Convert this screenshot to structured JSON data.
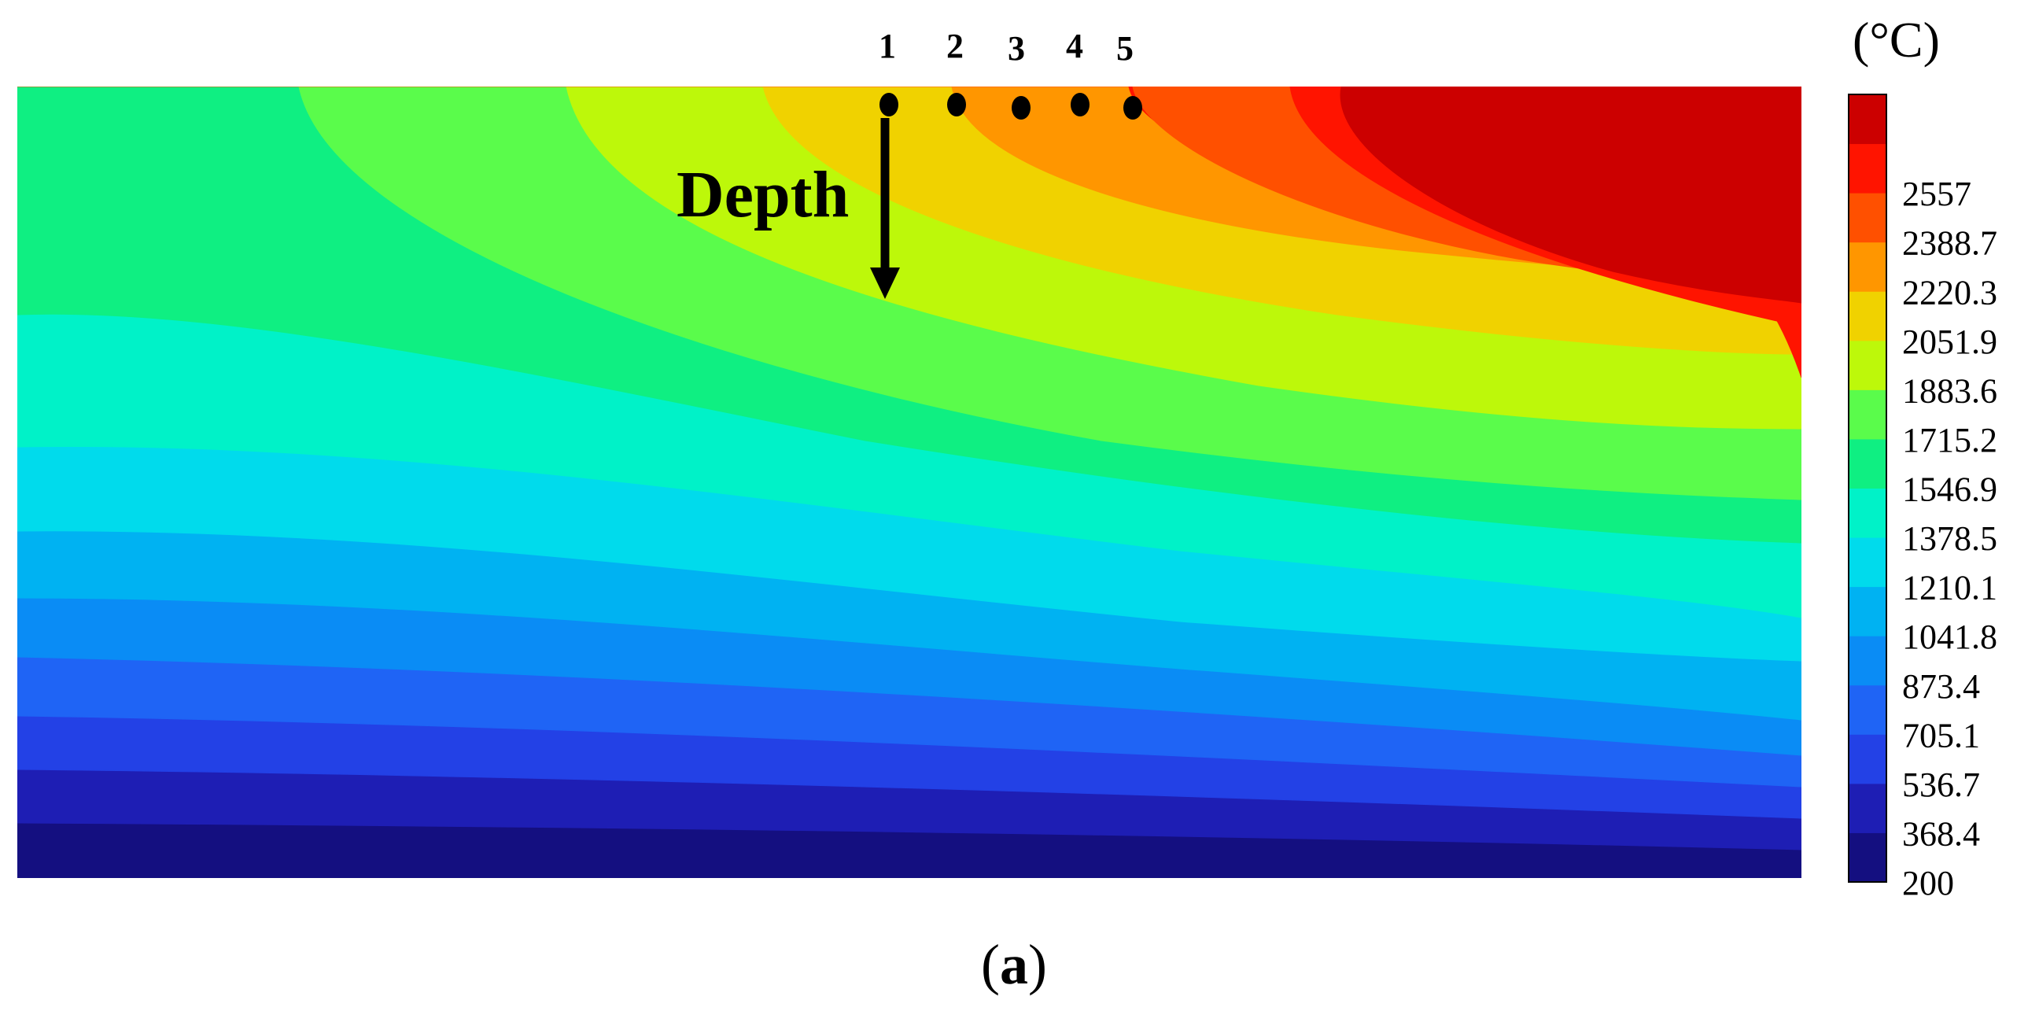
{
  "chart_data": {
    "type": "heatmap",
    "title": "",
    "unit": "(°C)",
    "annotation": "Depth",
    "point_labels": [
      "1",
      "2",
      "3",
      "4",
      "5"
    ],
    "colorbar": {
      "ticks": [
        "2557",
        "2388.7",
        "2220.3",
        "2051.9",
        "1883.6",
        "1715.2",
        "1546.9",
        "1378.5",
        "1210.1",
        "1041.8",
        "873.4",
        "705.1",
        "536.7",
        "368.4",
        "200"
      ],
      "min": 200,
      "max": 2725.4,
      "levels": [
        200,
        368.4,
        536.7,
        705.1,
        873.4,
        1041.8,
        1210.1,
        1378.5,
        1546.9,
        1715.2,
        1883.6,
        2051.9,
        2220.3,
        2388.7,
        2557
      ],
      "colors": [
        "#140f80",
        "#1e1eb4",
        "#2341e6",
        "#1f64f5",
        "#0a8cf5",
        "#00b2f2",
        "#00dbec",
        "#00f2c8",
        "#0fef82",
        "#5afc4b",
        "#bdf80a",
        "#f0d200",
        "#ff9600",
        "#ff5000",
        "#ff1400",
        "#cc0000"
      ]
    },
    "grid": false,
    "legend": "right"
  },
  "caption": {
    "open": "(",
    "letter": "a",
    "close": ")"
  },
  "colors": {
    "marker": "#000000",
    "axis_frame": "#000000"
  }
}
